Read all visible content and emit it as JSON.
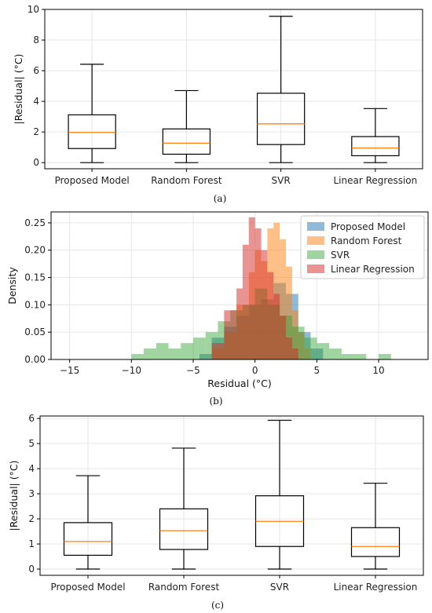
{
  "chart_data": [
    {
      "type": "box",
      "caption": "(a)",
      "ylabel": "|Residual| (°C)",
      "ylim": [
        -0.4,
        10
      ],
      "yticks": [
        0,
        2,
        4,
        6,
        8,
        10
      ],
      "grid": true,
      "median_color": "#ff7f0e",
      "categories": [
        "Proposed Model",
        "Random Forest",
        "SVR",
        "Linear Regression"
      ],
      "boxes": [
        {
          "whisker_low": 0,
          "q1": 0.92,
          "median": 1.97,
          "q3": 3.12,
          "whisker_high": 6.42
        },
        {
          "whisker_low": 0,
          "q1": 0.55,
          "median": 1.27,
          "q3": 2.2,
          "whisker_high": 4.7
        },
        {
          "whisker_low": 0,
          "q1": 1.18,
          "median": 2.53,
          "q3": 4.53,
          "whisker_high": 9.55
        },
        {
          "whisker_low": 0,
          "q1": 0.45,
          "median": 0.95,
          "q3": 1.7,
          "whisker_high": 3.53
        }
      ]
    },
    {
      "type": "histogram",
      "caption": "(b)",
      "xlabel": "Residual (°C)",
      "ylabel": "Density",
      "xlim": [
        -16.5,
        14
      ],
      "ylim": [
        0,
        0.27
      ],
      "xticks": [
        -15,
        -10,
        -5,
        0,
        5,
        10
      ],
      "yticks": [
        0.0,
        0.05,
        0.1,
        0.15,
        0.2,
        0.25
      ],
      "ytick_labels": [
        "0.00",
        "0.05",
        "0.10",
        "0.15",
        "0.20",
        "0.25"
      ],
      "grid": true,
      "legend_position": "top-right",
      "series": [
        {
          "name": "Proposed Model",
          "color": "#1f77b4",
          "opacity": 0.5,
          "bins": [
            [
              -4.5,
              -3.5,
              0.01
            ],
            [
              -3.5,
              -2.5,
              0.04
            ],
            [
              -2.5,
              -1.5,
              0.06
            ],
            [
              -1.5,
              -0.5,
              0.08
            ],
            [
              -0.5,
              0.5,
              0.1
            ],
            [
              0.5,
              1.5,
              0.11
            ],
            [
              1.5,
              2.5,
              0.14
            ],
            [
              2.5,
              3.5,
              0.12
            ],
            [
              3.5,
              4.5,
              0.05
            ],
            [
              4.5,
              5.5,
              0.02
            ]
          ]
        },
        {
          "name": "Random Forest",
          "color": "#ff7f0e",
          "opacity": 0.5,
          "bins": [
            [
              -3.5,
              -2.5,
              0.02
            ],
            [
              -2.5,
              -1.5,
              0.05
            ],
            [
              -1.5,
              -0.5,
              0.1
            ],
            [
              -0.5,
              0,
              0.16
            ],
            [
              0,
              0.5,
              0.2
            ],
            [
              0.5,
              1,
              0.18
            ],
            [
              1,
              1.5,
              0.24
            ],
            [
              1.5,
              2,
              0.25
            ],
            [
              2,
              2.5,
              0.22
            ],
            [
              2.5,
              3,
              0.17
            ],
            [
              3,
              3.5,
              0.09
            ],
            [
              3.5,
              4,
              0.05
            ],
            [
              4,
              4.5,
              0.02
            ]
          ]
        },
        {
          "name": "SVR",
          "color": "#2ca02c",
          "opacity": 0.45,
          "bins": [
            [
              -10,
              -9,
              0.01
            ],
            [
              -9,
              -8,
              0.02
            ],
            [
              -8,
              -7,
              0.03
            ],
            [
              -7,
              -6,
              0.02
            ],
            [
              -6,
              -5,
              0.03
            ],
            [
              -5,
              -4,
              0.04
            ],
            [
              -4,
              -3,
              0.05
            ],
            [
              -3,
              -2,
              0.07
            ],
            [
              -2,
              -1,
              0.09
            ],
            [
              -1,
              0,
              0.1
            ],
            [
              0,
              1,
              0.13
            ],
            [
              1,
              2,
              0.1
            ],
            [
              2,
              3,
              0.08
            ],
            [
              3,
              4,
              0.06
            ],
            [
              4,
              5,
              0.04
            ],
            [
              5,
              6,
              0.03
            ],
            [
              6,
              7,
              0.02
            ],
            [
              7,
              9,
              0.01
            ],
            [
              10,
              11,
              0.01
            ]
          ]
        },
        {
          "name": "Linear Regression",
          "color": "#d62728",
          "opacity": 0.5,
          "bins": [
            [
              -3.5,
              -2.5,
              0.03
            ],
            [
              -2.5,
              -1.5,
              0.09
            ],
            [
              -1.5,
              -1,
              0.13
            ],
            [
              -1,
              -0.5,
              0.21
            ],
            [
              -0.5,
              0,
              0.26
            ],
            [
              0,
              0.5,
              0.24
            ],
            [
              0.5,
              1,
              0.2
            ],
            [
              1,
              1.5,
              0.16
            ],
            [
              1.5,
              2,
              0.12
            ],
            [
              2,
              2.5,
              0.08
            ],
            [
              2.5,
              3,
              0.04
            ],
            [
              3,
              3.5,
              0.02
            ]
          ]
        }
      ]
    },
    {
      "type": "box",
      "caption": "(c)",
      "ylabel": "|Residual| (°C)",
      "ylim": [
        -0.25,
        6.1
      ],
      "yticks": [
        0,
        1,
        2,
        3,
        4,
        5,
        6
      ],
      "grid": true,
      "median_color": "#ff7f0e",
      "categories": [
        "Proposed Model",
        "Random Forest",
        "SVR",
        "Linear Regression"
      ],
      "boxes": [
        {
          "whisker_low": 0,
          "q1": 0.55,
          "median": 1.1,
          "q3": 1.85,
          "whisker_high": 3.72
        },
        {
          "whisker_low": 0,
          "q1": 0.78,
          "median": 1.53,
          "q3": 2.4,
          "whisker_high": 4.82
        },
        {
          "whisker_low": 0,
          "q1": 0.9,
          "median": 1.9,
          "q3": 2.92,
          "whisker_high": 5.93
        },
        {
          "whisker_low": 0,
          "q1": 0.5,
          "median": 0.9,
          "q3": 1.65,
          "whisker_high": 3.42
        }
      ]
    }
  ]
}
